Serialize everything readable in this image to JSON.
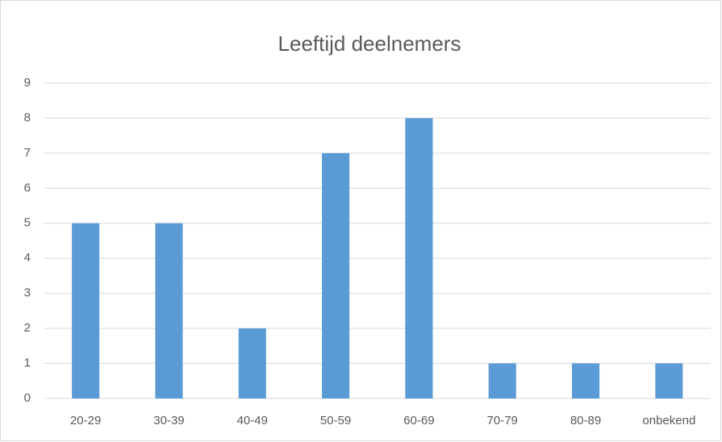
{
  "chart_data": {
    "type": "bar",
    "title": "Leeftijd deelnemers",
    "categories": [
      "20-29",
      "30-39",
      "40-49",
      "50-59",
      "60-69",
      "70-79",
      "80-89",
      "onbekend"
    ],
    "values": [
      5,
      5,
      2,
      7,
      8,
      1,
      1,
      1
    ],
    "color": "#5b9bd5",
    "ylim": [
      0,
      9
    ],
    "yticks": [
      0,
      1,
      2,
      3,
      4,
      5,
      6,
      7,
      8,
      9
    ],
    "grid": true
  }
}
